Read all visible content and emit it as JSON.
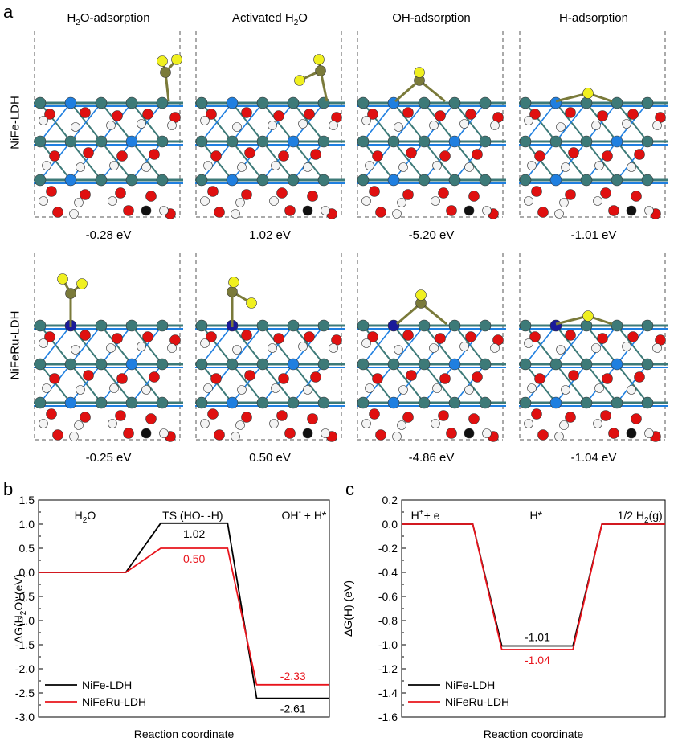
{
  "panel_a": {
    "letter": "a",
    "columns": [
      "H2O-adsorption",
      "Activated H2O",
      "OH-adsorption",
      "H-adsorption"
    ],
    "columns_display": [
      {
        "pre": "H",
        "sub": "2",
        "post": "O-adsorption"
      },
      {
        "pre": "Activated H",
        "sub": "2",
        "post": "O"
      },
      {
        "pre": "OH-adsorption",
        "sub": "",
        "post": ""
      },
      {
        "pre": "H-adsorption",
        "sub": "",
        "post": ""
      }
    ],
    "rows": [
      {
        "label": "NiFe-LDH",
        "energies": [
          "-0.28 eV",
          "1.02 eV",
          "-5.20 eV",
          "-1.01 eV"
        ]
      },
      {
        "label": "NiFeRu-LDH",
        "energies": [
          "-0.25 eV",
          "0.50 eV",
          "-4.86 eV",
          "-1.04 eV"
        ]
      }
    ],
    "colors": {
      "ni": "#3d7a78",
      "fe": "#1f7fe0",
      "ru": "#1a1a9a",
      "o": "#e01010",
      "h": "#f4f4f4",
      "s": "#f0f020",
      "c": "#111111",
      "tip": "#7a7a3a"
    }
  },
  "chart_data": [
    {
      "type": "line",
      "letter": "b",
      "xlabel": "Reaction coordinate",
      "ylabel": "ΔG(H2O) (eV)",
      "ylim": [
        -3.0,
        1.5
      ],
      "yticks": [
        "1.5",
        "1.0",
        "0.5",
        "0.0",
        "-0.5",
        "-1.0",
        "-1.5",
        "-2.0",
        "-2.5",
        "-3.0"
      ],
      "states": [
        "H2O",
        "TS (HO- -H)",
        "OH- + H*"
      ],
      "series": [
        {
          "name": "NiFe-LDH",
          "color": "#000000",
          "values": [
            0.0,
            1.02,
            -2.61
          ],
          "labels": [
            "",
            "1.02",
            "-2.61"
          ]
        },
        {
          "name": "NiFeRu-LDH",
          "color": "#e8141c",
          "values": [
            0.0,
            0.5,
            -2.33
          ],
          "labels": [
            "",
            "0.50",
            "-2.33"
          ]
        }
      ],
      "legend": "bottom-left"
    },
    {
      "type": "line",
      "letter": "c",
      "xlabel": "Reaction coordinate",
      "ylabel": "ΔG(H) (eV)",
      "ylim": [
        -1.6,
        0.2
      ],
      "yticks": [
        "0.2",
        "0.0",
        "-0.2",
        "-0.4",
        "-0.6",
        "-0.8",
        "-1.0",
        "-1.2",
        "-1.4",
        "-1.6"
      ],
      "states": [
        "H+ + e",
        "H*",
        "1/2 H2(g)"
      ],
      "series": [
        {
          "name": "NiFe-LDH",
          "color": "#000000",
          "values": [
            0.0,
            -1.01,
            0.0
          ],
          "labels": [
            "",
            "-1.01",
            ""
          ]
        },
        {
          "name": "NiFeRu-LDH",
          "color": "#e8141c",
          "values": [
            0.0,
            -1.04,
            0.0
          ],
          "labels": [
            "",
            "-1.04",
            ""
          ]
        }
      ],
      "legend": "bottom-left"
    }
  ]
}
